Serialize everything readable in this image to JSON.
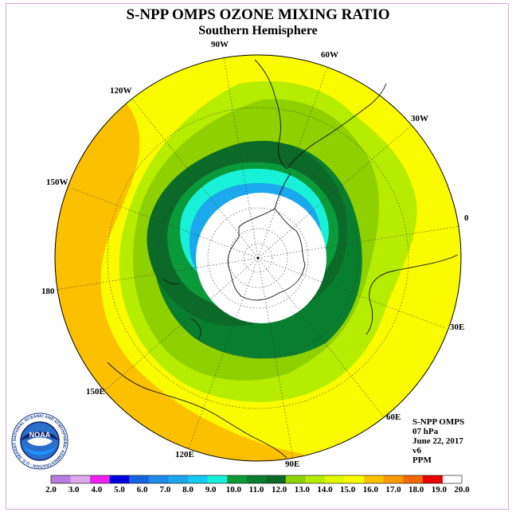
{
  "header": {
    "title": "S-NPP OMPS OZONE MIXING RATIO",
    "subtitle": "Southern Hemisphere"
  },
  "longitude_labels": [
    {
      "text": "90W",
      "name": "lon-label-90w"
    },
    {
      "text": "60W",
      "name": "lon-label-60w"
    },
    {
      "text": "30W",
      "name": "lon-label-30w"
    },
    {
      "text": "0",
      "name": "lon-label-0"
    },
    {
      "text": "30E",
      "name": "lon-label-30e"
    },
    {
      "text": "60E",
      "name": "lon-label-60e"
    },
    {
      "text": "90E",
      "name": "lon-label-90e"
    },
    {
      "text": "120E",
      "name": "lon-label-120e"
    },
    {
      "text": "150E",
      "name": "lon-label-150e"
    },
    {
      "text": "180",
      "name": "lon-label-180"
    },
    {
      "text": "150W",
      "name": "lon-label-150w"
    },
    {
      "text": "120W",
      "name": "lon-label-120w"
    }
  ],
  "info": {
    "instrument": "S-NPP OMPS",
    "level": "07 hPa",
    "date": "June 22, 2017",
    "version": "v6",
    "units": "PPM"
  },
  "colorbar": {
    "ticks": [
      "2.0",
      "3.0",
      "4.0",
      "5.0",
      "6.0",
      "7.0",
      "8.0",
      "9.0",
      "10.0",
      "11.0",
      "12.0",
      "13.0",
      "14.0",
      "15.0",
      "16.0",
      "17.0",
      "18.0",
      "19.0",
      "20.0"
    ],
    "colors": [
      "#b57ce0",
      "#dca8ee",
      "#ee22ee",
      "#0000dd",
      "#1565e0",
      "#1d8be8",
      "#1ba8ec",
      "#19c8f0",
      "#19f0d8",
      "#0a9a3a",
      "#097e2e",
      "#0b6a28",
      "#8ed000",
      "#b6ec00",
      "#e2f800",
      "#fbfb00",
      "#fbc100",
      "#f89a00",
      "#f46a00",
      "#e80000",
      "#7a4e2a"
    ]
  },
  "logo": {
    "text": "NOAA",
    "ring_text": "NATIONAL OCEANIC AND ATMOSPHERIC ADMINISTRATION · U.S. DEPARTMENT OF COMMERCE"
  }
}
